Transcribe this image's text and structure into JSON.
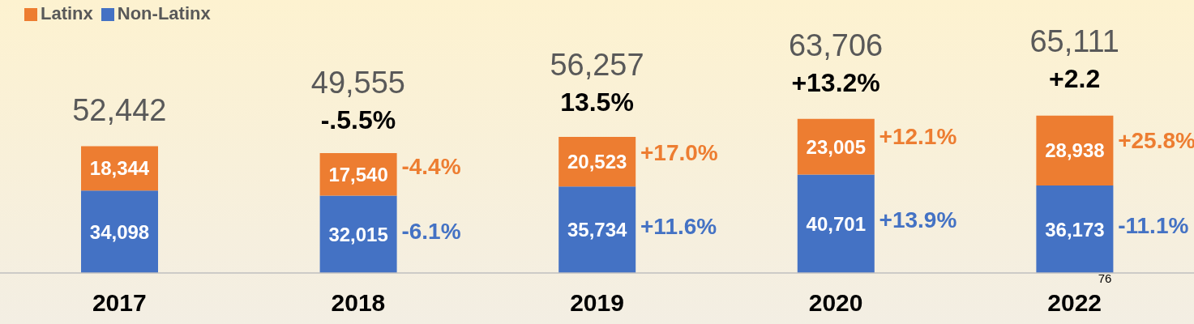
{
  "chart_data": {
    "type": "bar",
    "stacked": true,
    "categories": [
      "2017",
      "2018",
      "2019",
      "2020",
      "2022"
    ],
    "series": [
      {
        "name": "Non-Latinx",
        "color": "#4472c4",
        "values": [
          34098,
          32015,
          35734,
          40701,
          36173
        ],
        "value_labels": [
          "34,098",
          "32,015",
          "35,734",
          "40,701",
          "36,173"
        ]
      },
      {
        "name": "Latinx",
        "color": "#ed7d31",
        "values": [
          18344,
          17540,
          20523,
          23005,
          28938
        ],
        "value_labels": [
          "18,344",
          "17,540",
          "20,523",
          "23,005",
          "28,938"
        ]
      }
    ],
    "totals": [
      "52,442",
      "49,555",
      "56,257",
      "63,706",
      "65,111"
    ],
    "legend": "top left",
    "annotations": [
      "-.5.5%",
      "13.5%",
      "+13.2%",
      "+2.2",
      {
        "text": "-4.4%",
        "x": "2018",
        "y": 49555
      },
      {
        "text": "-6.1%",
        "x": "2018",
        "y": 32015
      },
      {
        "text": "+17.0%",
        "x": "2019",
        "y": 56257
      },
      {
        "text": "+11.6%",
        "x": "2019",
        "y": 35734
      },
      {
        "text": "+12.1%",
        "x": "2020",
        "y": 63706
      },
      {
        "text": "+13.9%",
        "x": "2020",
        "y": 40701
      },
      {
        "text": "+25.8%",
        "x": "2022",
        "y": 65111
      },
      {
        "text": "-11.1%",
        "x": "2022",
        "y": 36173
      },
      "76"
    ]
  }
}
